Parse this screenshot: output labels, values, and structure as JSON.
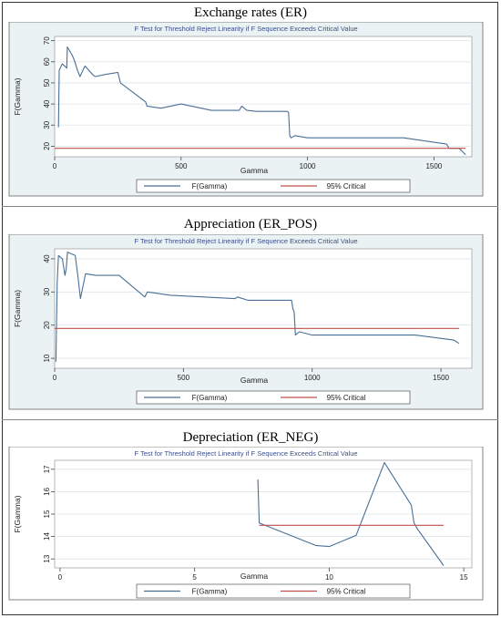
{
  "panels": [
    {
      "heading": "Exchange rates (ER)",
      "chart_data": {
        "type": "line",
        "title": "F Test for Threshold Reject Linearity if F Sequence Exceeds Critical Value",
        "xlabel": "Gamma",
        "ylabel": "F(Gamma)",
        "xlim": [
          0,
          1650
        ],
        "ylim": [
          15,
          72
        ],
        "xticks": [
          "0",
          "500",
          "1000",
          "1500"
        ],
        "xtick_values": [
          0,
          500,
          1000,
          1500
        ],
        "yticks": [
          "20",
          "30",
          "40",
          "50",
          "60",
          "70"
        ],
        "ytick_values": [
          20,
          30,
          40,
          50,
          60,
          70
        ],
        "grid": true,
        "legend": "bottom",
        "colors": {
          "fgamma": "#4a6f96",
          "critical": "#c0504d",
          "background": "#eaf2f3"
        },
        "series": [
          {
            "name": "F(Gamma)",
            "x": [
              15,
              18,
              22,
              30,
              40,
              48,
              50,
              55,
              70,
              80,
              90,
              100,
              120,
              150,
              160,
              200,
              250,
              260,
              360,
              365,
              420,
              500,
              620,
              730,
              740,
              760,
              800,
              920,
              925,
              930,
              935,
              950,
              1000,
              1380,
              1550,
              1560,
              1600,
              1625
            ],
            "y": [
              29,
              56,
              57,
              59,
              58,
              57,
              67,
              66,
              63,
              60,
              56,
              53,
              58,
              54,
              53,
              54,
              55,
              50,
              41,
              39,
              38,
              40,
              37,
              37,
              39,
              37,
              36.5,
              36.5,
              36,
              25,
              24,
              25,
              24,
              24,
              21,
              19,
              19,
              16
            ]
          },
          {
            "name": "95% Critical",
            "x": [
              0,
              1625
            ],
            "y": [
              19,
              19
            ]
          }
        ]
      }
    },
    {
      "heading": "Appreciation (ER_POS)",
      "chart_data": {
        "type": "line",
        "title": "F Test for Threshold Reject Linearity if F Sequence Exceeds Critical Value",
        "xlabel": "Gamma",
        "ylabel": "F(Gamma)",
        "xlim": [
          0,
          1620
        ],
        "ylim": [
          7,
          43
        ],
        "xticks": [
          "0",
          "500",
          "1000",
          "1500"
        ],
        "xtick_values": [
          0,
          500,
          1000,
          1500
        ],
        "yticks": [
          "10",
          "20",
          "30",
          "40"
        ],
        "ytick_values": [
          10,
          20,
          30,
          40
        ],
        "grid": true,
        "legend": "bottom",
        "colors": {
          "fgamma": "#4a6f96",
          "critical": "#c0504d",
          "background": "#eaf2f3"
        },
        "series": [
          {
            "name": "F(Gamma)",
            "x": [
              5,
              10,
              15,
              30,
              40,
              45,
              50,
              80,
              90,
              100,
              120,
              160,
              250,
              350,
              360,
              450,
              700,
              710,
              750,
              920,
              925,
              930,
              935,
              950,
              1000,
              1400,
              1550,
              1570
            ],
            "y": [
              9,
              33,
              41,
              40,
              35,
              37,
              42,
              41,
              35,
              28,
              35.5,
              35,
              35,
              28.5,
              30,
              29,
              28,
              28.5,
              27.5,
              27.5,
              25,
              24,
              17,
              18,
              17,
              17,
              15.5,
              14.5
            ]
          },
          {
            "name": "95% Critical",
            "x": [
              0,
              1570
            ],
            "y": [
              19,
              19
            ]
          }
        ]
      }
    },
    {
      "heading": "Depreciation (ER_NEG)",
      "chart_data": {
        "type": "line",
        "title": "F Test for Threshold Reject Linearity if F Sequence Exceeds Critical Value",
        "xlabel": "Gamma",
        "ylabel": "F(Gamma)",
        "xlim": [
          -0.2,
          15.3
        ],
        "ylim": [
          12.6,
          17.4
        ],
        "xticks": [
          "0",
          "5",
          "10",
          "15"
        ],
        "xtick_values": [
          0,
          5,
          10,
          15
        ],
        "yticks": [
          "13",
          "14",
          "15",
          "16",
          "17"
        ],
        "ytick_values": [
          13,
          14,
          15,
          16,
          17
        ],
        "grid": true,
        "legend": "bottom",
        "colors": {
          "fgamma": "#4a6f96",
          "critical": "#c0504d",
          "background": "#ffffff"
        },
        "series": [
          {
            "name": "F(Gamma)",
            "x": [
              7.35,
              7.4,
              9.5,
              10,
              11,
              12.05,
              13.05,
              13.15,
              13.3,
              14.25
            ],
            "y": [
              16.55,
              14.6,
              13.6,
              13.55,
              14.05,
              17.3,
              15.4,
              14.6,
              14.3,
              12.7
            ]
          },
          {
            "name": "95% Critical",
            "x": [
              7.4,
              14.25
            ],
            "y": [
              14.5,
              14.5
            ]
          }
        ]
      }
    }
  ]
}
